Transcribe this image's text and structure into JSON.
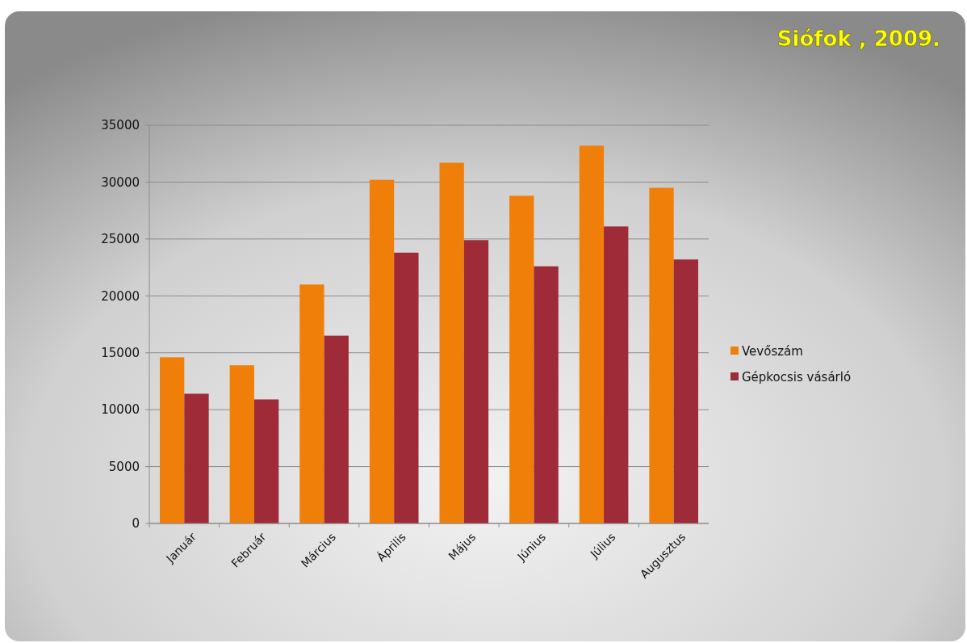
{
  "chart_data": {
    "type": "bar",
    "title": "Siófok , 2009.",
    "categories": [
      "Január",
      "Február",
      "Március",
      "Április",
      "Május",
      "Június",
      "Július",
      "Augusztus"
    ],
    "series": [
      {
        "name": "Vevőszám",
        "color": "#f07f09",
        "values": [
          14600,
          13900,
          21000,
          30200,
          31700,
          28800,
          33200,
          29500
        ]
      },
      {
        "name": "Gépkocsis vásárló",
        "color": "#9e2b37",
        "values": [
          11400,
          10900,
          16500,
          23800,
          24900,
          22600,
          26100,
          23200
        ]
      }
    ],
    "ylim": [
      0,
      35000
    ],
    "yticks": [
      0,
      5000,
      10000,
      15000,
      20000,
      25000,
      30000,
      35000
    ],
    "grid": "y",
    "legend": "right"
  }
}
